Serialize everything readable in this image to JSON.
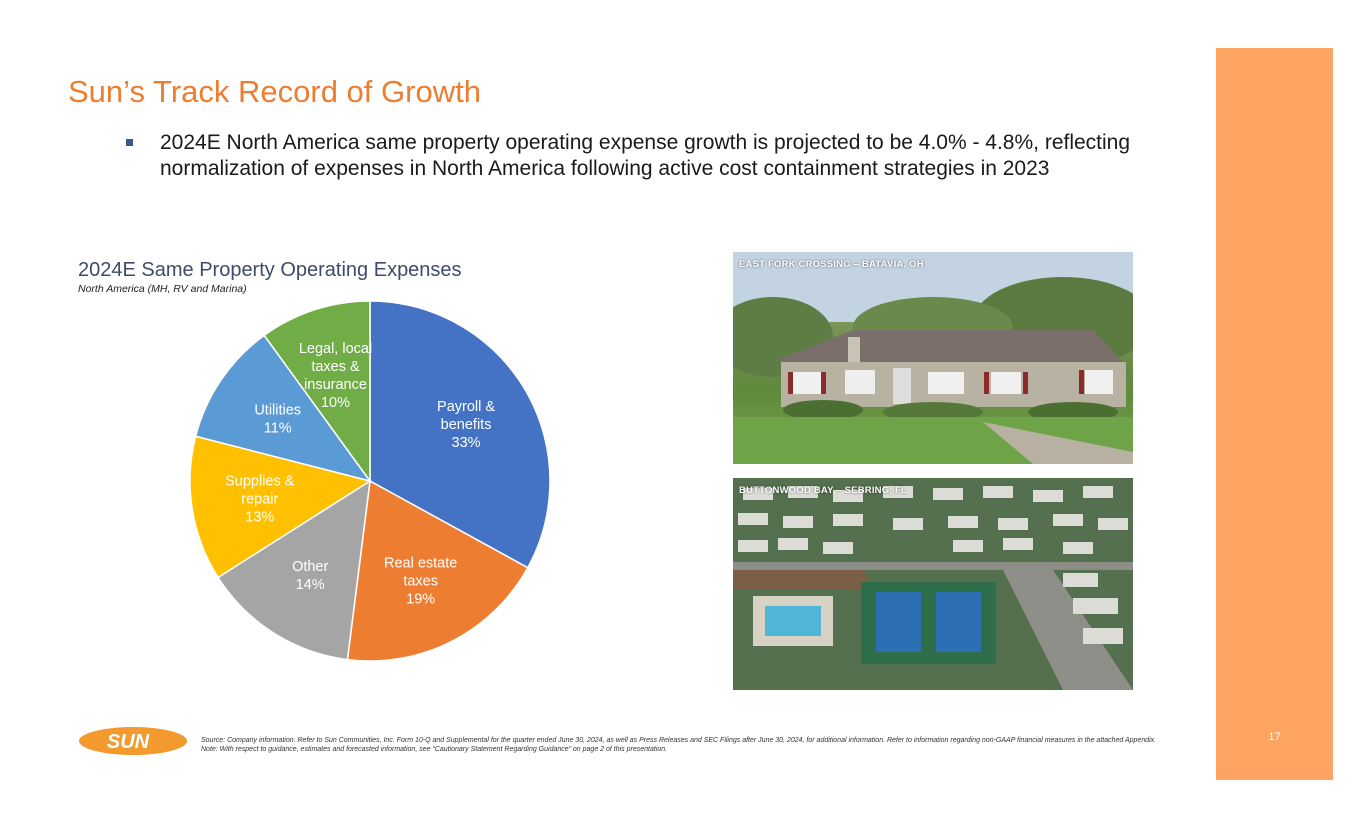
{
  "title": "Sun’s Track Record of Growth",
  "bullets": [
    "2024E North America same property operating expense growth is projected to be 4.0% - 4.8%, reflecting normalization of expenses in North America following active cost containment strategies in 2023"
  ],
  "chart_data": {
    "type": "pie",
    "title": "2024E Same Property Operating Expenses",
    "subtitle": "North America (MH, RV and Marina)",
    "slices": [
      {
        "label": "Payroll & benefits",
        "lines": [
          "Payroll &",
          "benefits",
          "33%"
        ],
        "value": 33,
        "color": "#4472c4"
      },
      {
        "label": "Real estate taxes",
        "lines": [
          "Real estate",
          "taxes",
          "19%"
        ],
        "value": 19,
        "color": "#ed7d31"
      },
      {
        "label": "Other",
        "lines": [
          "Other",
          "14%"
        ],
        "value": 14,
        "color": "#a5a5a5"
      },
      {
        "label": "Supplies & repair",
        "lines": [
          "Supplies &",
          "repair",
          "13%"
        ],
        "value": 13,
        "color": "#ffc000"
      },
      {
        "label": "Utilities",
        "lines": [
          "Utilities",
          "11%"
        ],
        "value": 11,
        "color": "#5b9bd5"
      },
      {
        "label": "Legal, local taxes & insurance",
        "lines": [
          "Legal, local",
          "taxes &",
          "insurance",
          "10%"
        ],
        "value": 10,
        "color": "#70ad47"
      }
    ]
  },
  "photos": [
    {
      "caption": "EAST FORK CROSSING – BATAVIA, OH"
    },
    {
      "caption": "BUTTONWOOD BAY – SEBRING, FL"
    }
  ],
  "logo": {
    "text": "SUN",
    "color": "#ed7d31"
  },
  "footnotes": [
    "Source: Company information. Refer to Sun Communities, Inc. Form 10-Q and Supplemental for the quarter ended June 30, 2024, as well as Press Releases and SEC Filings after June 30, 2024, for additional information. Refer to information regarding non-GAAP financial measures in the attached Appendix.",
    "Note: With respect to guidance, estimates and forecasted information, see “Cautionary Statement Regarding Guidance” on page 2 of this presentation."
  ],
  "page_number": "17",
  "colors": {
    "accent": "#ed7d31",
    "side_bar": "#fea462"
  }
}
